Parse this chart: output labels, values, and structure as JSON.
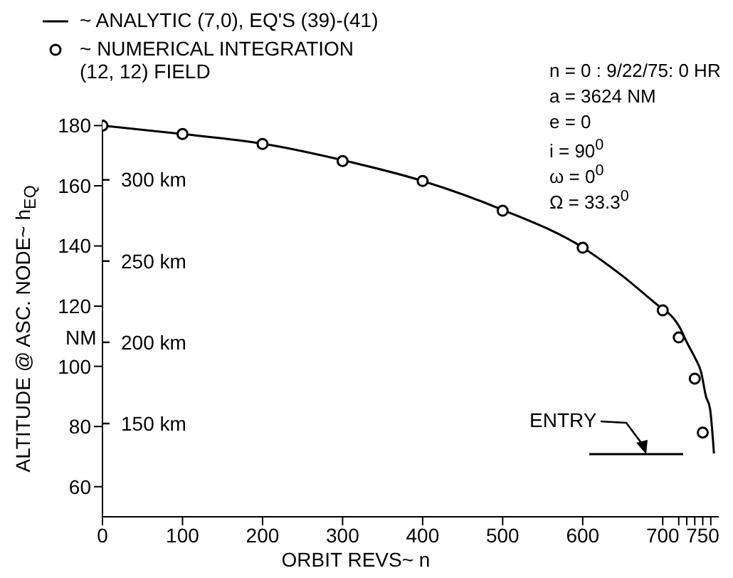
{
  "chart_data": {
    "type": "line",
    "xlabel": "ORBIT REVS~ n",
    "ylabel": "ALTITUDE @ ASC. NODE~ h$_{EQ}$",
    "xlim": [
      0,
      770
    ],
    "xticks": [
      0,
      100,
      200,
      300,
      400,
      500,
      600,
      700,
      {
        "value": 720,
        "label": null
      },
      {
        "value": 730,
        "label": null
      },
      {
        "value": 740,
        "label": null
      },
      750,
      {
        "value": 760,
        "label": null
      }
    ],
    "ylim": [
      50,
      182
    ],
    "yticks": [
      60,
      80,
      100,
      120,
      140,
      160,
      180
    ],
    "y2lim": [
      92.6,
      337.1
    ],
    "y2ticks": [
      {
        "value": 150,
        "label": "150 km"
      },
      {
        "value": 200,
        "label": "200 km"
      },
      {
        "value": 250,
        "label": "250 km"
      },
      {
        "value": 300,
        "label": "300 km"
      }
    ],
    "legend": "top",
    "line_style": "solid",
    "annotations": [
      "NM",
      "n = 0 : 9/22/75: 0 HR",
      "a = 3624 NM",
      "e = 0",
      "i = 90$^{0}$",
      "ω = 0$^{0}$",
      "Ω = 33.3$^{0}$",
      "ENTRY"
    ],
    "series": [
      {
        "name": "~ ANALYTIC (7,0),  EQ'S (39)-(41)",
        "marker": "none",
        "color": "#000000",
        "x": [
          0,
          100,
          200,
          300,
          400,
          500,
          600,
          650,
          700,
          710,
          720,
          732,
          740,
          748,
          754,
          759,
          764
        ],
        "values": [
          180,
          177.2,
          174,
          168.5,
          161.6,
          152,
          139.5,
          130,
          119,
          117,
          113.5,
          107,
          103,
          98,
          90,
          86,
          71
        ]
      },
      {
        "name": "~ NUMERICAL INTEGRATION (12, 12) FIELD",
        "type": "scatter",
        "marker": "circle",
        "color": "#000000",
        "x": [
          0,
          100,
          200,
          300,
          400,
          500,
          600,
          700,
          720,
          740,
          750
        ],
        "values": [
          180,
          177.2,
          173.9,
          168.2,
          161.6,
          151.7,
          139.4,
          118.6,
          109.6,
          95.9,
          78
        ]
      }
    ]
  }
}
